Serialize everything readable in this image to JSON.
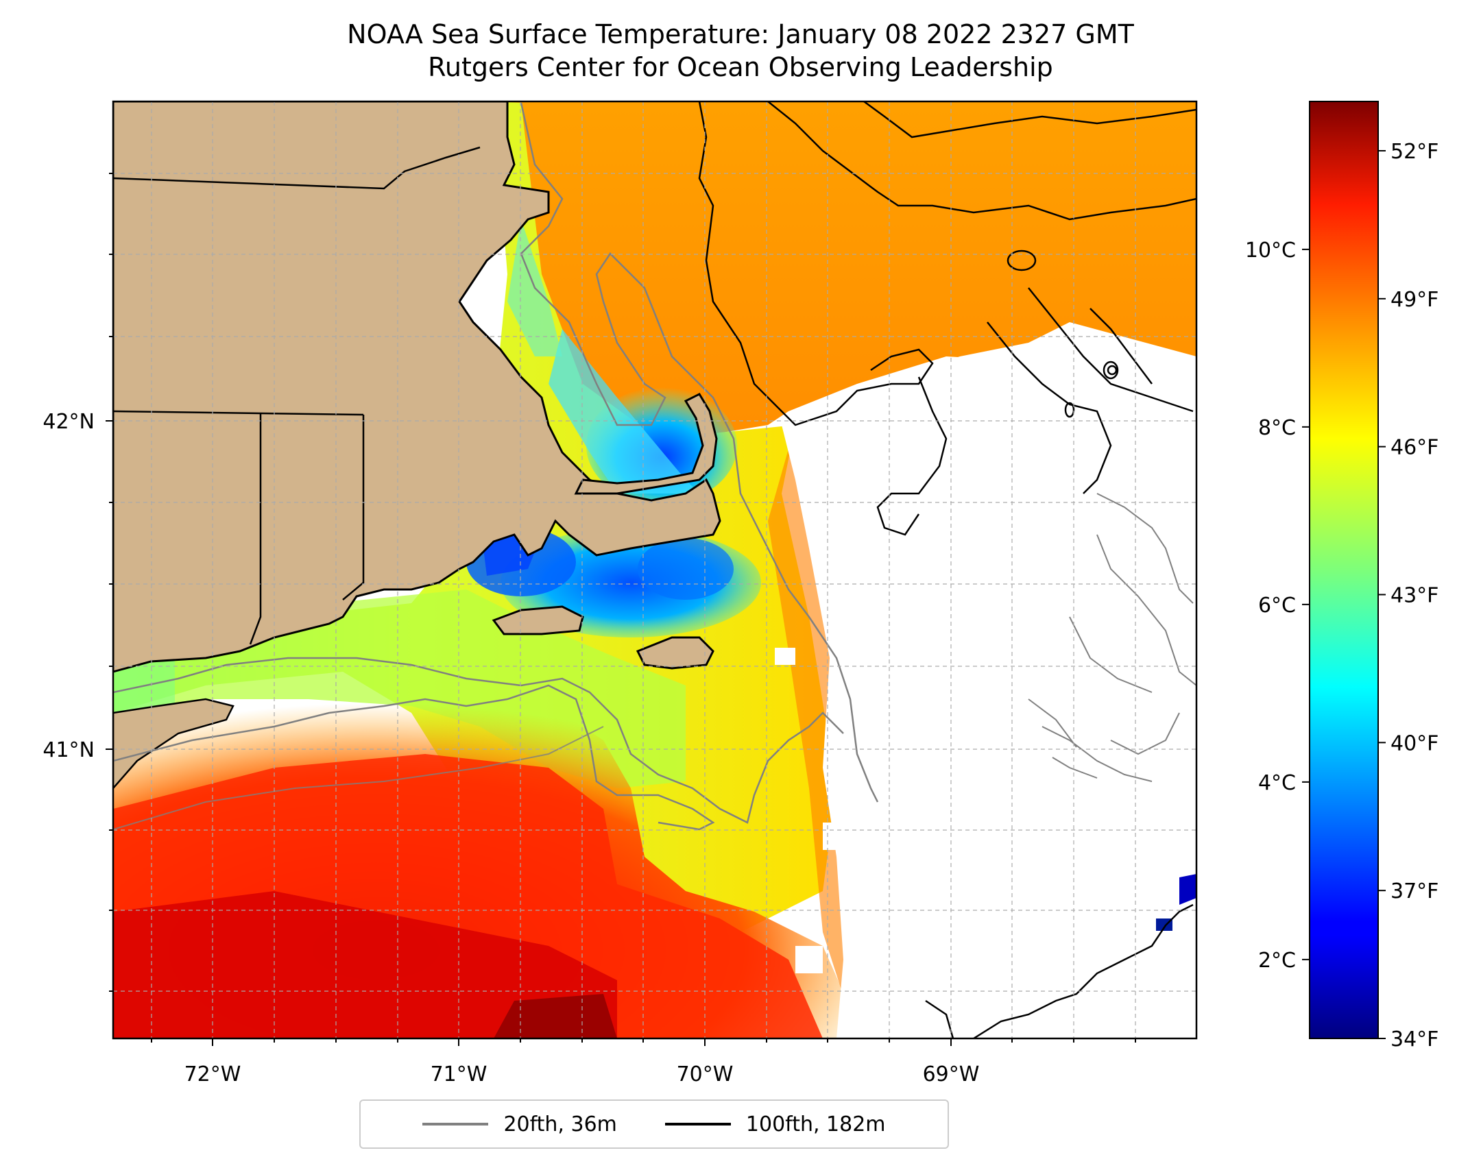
{
  "title": {
    "line1": "NOAA Sea Surface Temperature: January 08 2022 2327 GMT",
    "line2": "Rutgers Center for Ocean Observing Leadership"
  },
  "map": {
    "lon_range": [
      -72.4,
      -68.0
    ],
    "lat_range": [
      40.15,
      43.0
    ],
    "lon_ticks": [
      {
        "value": -72,
        "label": "72°W"
      },
      {
        "value": -71,
        "label": "71°W"
      },
      {
        "value": -70,
        "label": "70°W"
      },
      {
        "value": -69,
        "label": "69°W"
      }
    ],
    "lat_ticks": [
      {
        "value": 42,
        "label": "42°N"
      },
      {
        "value": 41,
        "label": "41°N"
      }
    ],
    "gridlines": true,
    "land_color": "#d2b48c",
    "no_data_color": "#ffffff"
  },
  "colorbar": {
    "colormap": "jet",
    "range_f": [
      34,
      53
    ],
    "fahrenheit_ticks": [
      {
        "value": 34,
        "label": "34°F"
      },
      {
        "value": 37,
        "label": "37°F"
      },
      {
        "value": 40,
        "label": "40°F"
      },
      {
        "value": 43,
        "label": "43°F"
      },
      {
        "value": 46,
        "label": "46°F"
      },
      {
        "value": 49,
        "label": "49°F"
      },
      {
        "value": 52,
        "label": "52°F"
      }
    ],
    "celsius_ticks": [
      {
        "value": 2,
        "label": "2°C"
      },
      {
        "value": 4,
        "label": "4°C"
      },
      {
        "value": 6,
        "label": "6°C"
      },
      {
        "value": 8,
        "label": "8°C"
      },
      {
        "value": 10,
        "label": "10°C"
      }
    ]
  },
  "legend": {
    "items": [
      {
        "label": "20fth, 36m",
        "color": "#808080"
      },
      {
        "label": "100fth, 182m",
        "color": "#000000"
      }
    ]
  }
}
